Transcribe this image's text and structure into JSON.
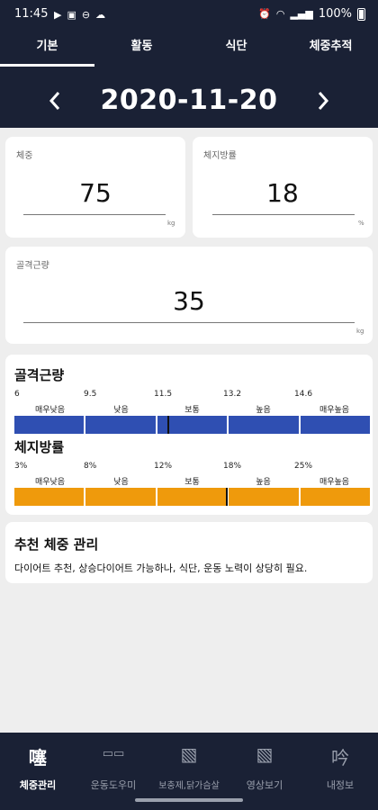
{
  "status": {
    "time": "11:45",
    "battery": "100%"
  },
  "tabs": [
    {
      "label": "기본",
      "active": true
    },
    {
      "label": "활동",
      "active": false
    },
    {
      "label": "식단",
      "active": false
    },
    {
      "label": "체중추적",
      "active": false
    }
  ],
  "date": "2020-11-20",
  "cards": {
    "weight": {
      "label": "체중",
      "value": "75",
      "unit": "kg"
    },
    "body_fat": {
      "label": "체지방률",
      "value": "18",
      "unit": "%"
    },
    "muscle": {
      "label": "골격근량",
      "value": "35",
      "unit": "kg"
    }
  },
  "muscle_range": {
    "title": "골격근량",
    "ticks": [
      "6",
      "9.5",
      "11.5",
      "13.2",
      "14.6"
    ],
    "labels": [
      "매우낮음",
      "낮음",
      "보통",
      "높음",
      "매우높음"
    ],
    "color": "#2f4fb2",
    "marker_segment_fraction": 0.2
  },
  "fat_range": {
    "title": "체지방률",
    "ticks": [
      "3%",
      "8%",
      "12%",
      "18%",
      "25%"
    ],
    "labels": [
      "매우낮음",
      "낮음",
      "보통",
      "높음",
      "매우높음"
    ],
    "color": "#ef9a0c",
    "marker_segment_fraction": 0.0
  },
  "recommendation": {
    "title": "추천 체중 관리",
    "text": "다이어트 추천, 상승다이어트 가능하나, 식단, 운동 노력이 상당히 필요."
  },
  "bottom_nav": [
    {
      "label": "체중관리",
      "icon": "scale-icon",
      "glyph": "噻",
      "active": true
    },
    {
      "label": "운동도우미",
      "icon": "glasses-icon",
      "glyph": "▭▭",
      "active": false
    },
    {
      "label": "보충제,닭가슴살",
      "icon": "supplement-icon",
      "glyph": "▧",
      "active": false
    },
    {
      "label": "영상보기",
      "icon": "video-icon",
      "glyph": "▧",
      "active": false
    },
    {
      "label": "내정보",
      "icon": "profile-icon",
      "glyph": "吟",
      "active": false
    }
  ]
}
